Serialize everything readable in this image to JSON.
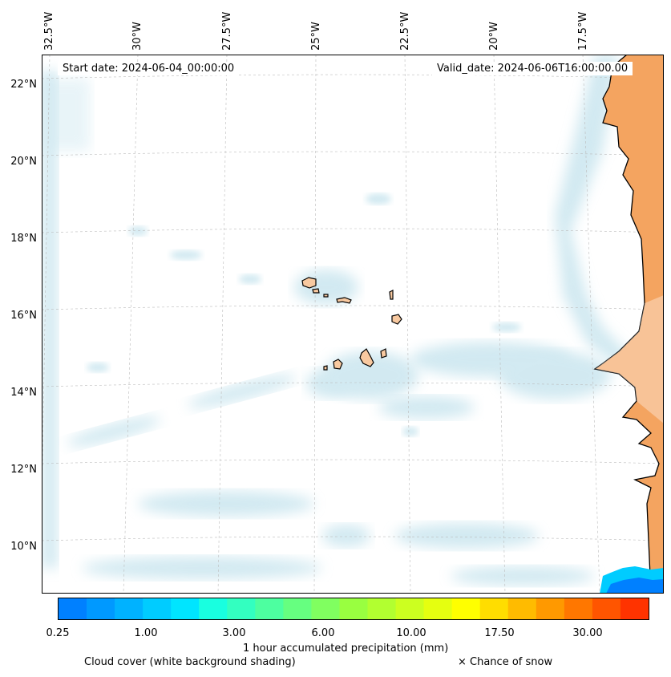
{
  "map": {
    "start_label": "Start date: 2024-06-04_00:00:00",
    "valid_label": "Valid_date: 2024-06-06T16:00:00.00",
    "lon_labels": [
      "32.5°W",
      "30°W",
      "27.5°W",
      "25°W",
      "22.5°W",
      "20°W",
      "17.5°W"
    ],
    "lat_labels": [
      "22°N",
      "20°N",
      "18°N",
      "16°N",
      "14°N",
      "12°N",
      "10°N"
    ],
    "land_color": "#f4a460",
    "island_color": "#f8c9a0",
    "cloud_color": "#add8e6"
  },
  "colorbar": {
    "title": "1 hour accumulated precipitation (mm)",
    "tick_labels": [
      "0.25",
      "1.00",
      "3.00",
      "6.00",
      "10.00",
      "17.50",
      "30.00"
    ],
    "colors": [
      "#0080ff",
      "#0099ff",
      "#00b2ff",
      "#00ccff",
      "#00e5ff",
      "#19ffe0",
      "#33ffc0",
      "#4dffa0",
      "#66ff80",
      "#80ff60",
      "#99ff40",
      "#b2ff30",
      "#ccff20",
      "#e5ff10",
      "#ffff00",
      "#ffdd00",
      "#ffbb00",
      "#ff9900",
      "#ff7700",
      "#ff5500",
      "#ff3300"
    ]
  },
  "legend": {
    "cloud_label": "Cloud cover (white background shading)",
    "snow_label": "× Chance of snow"
  }
}
